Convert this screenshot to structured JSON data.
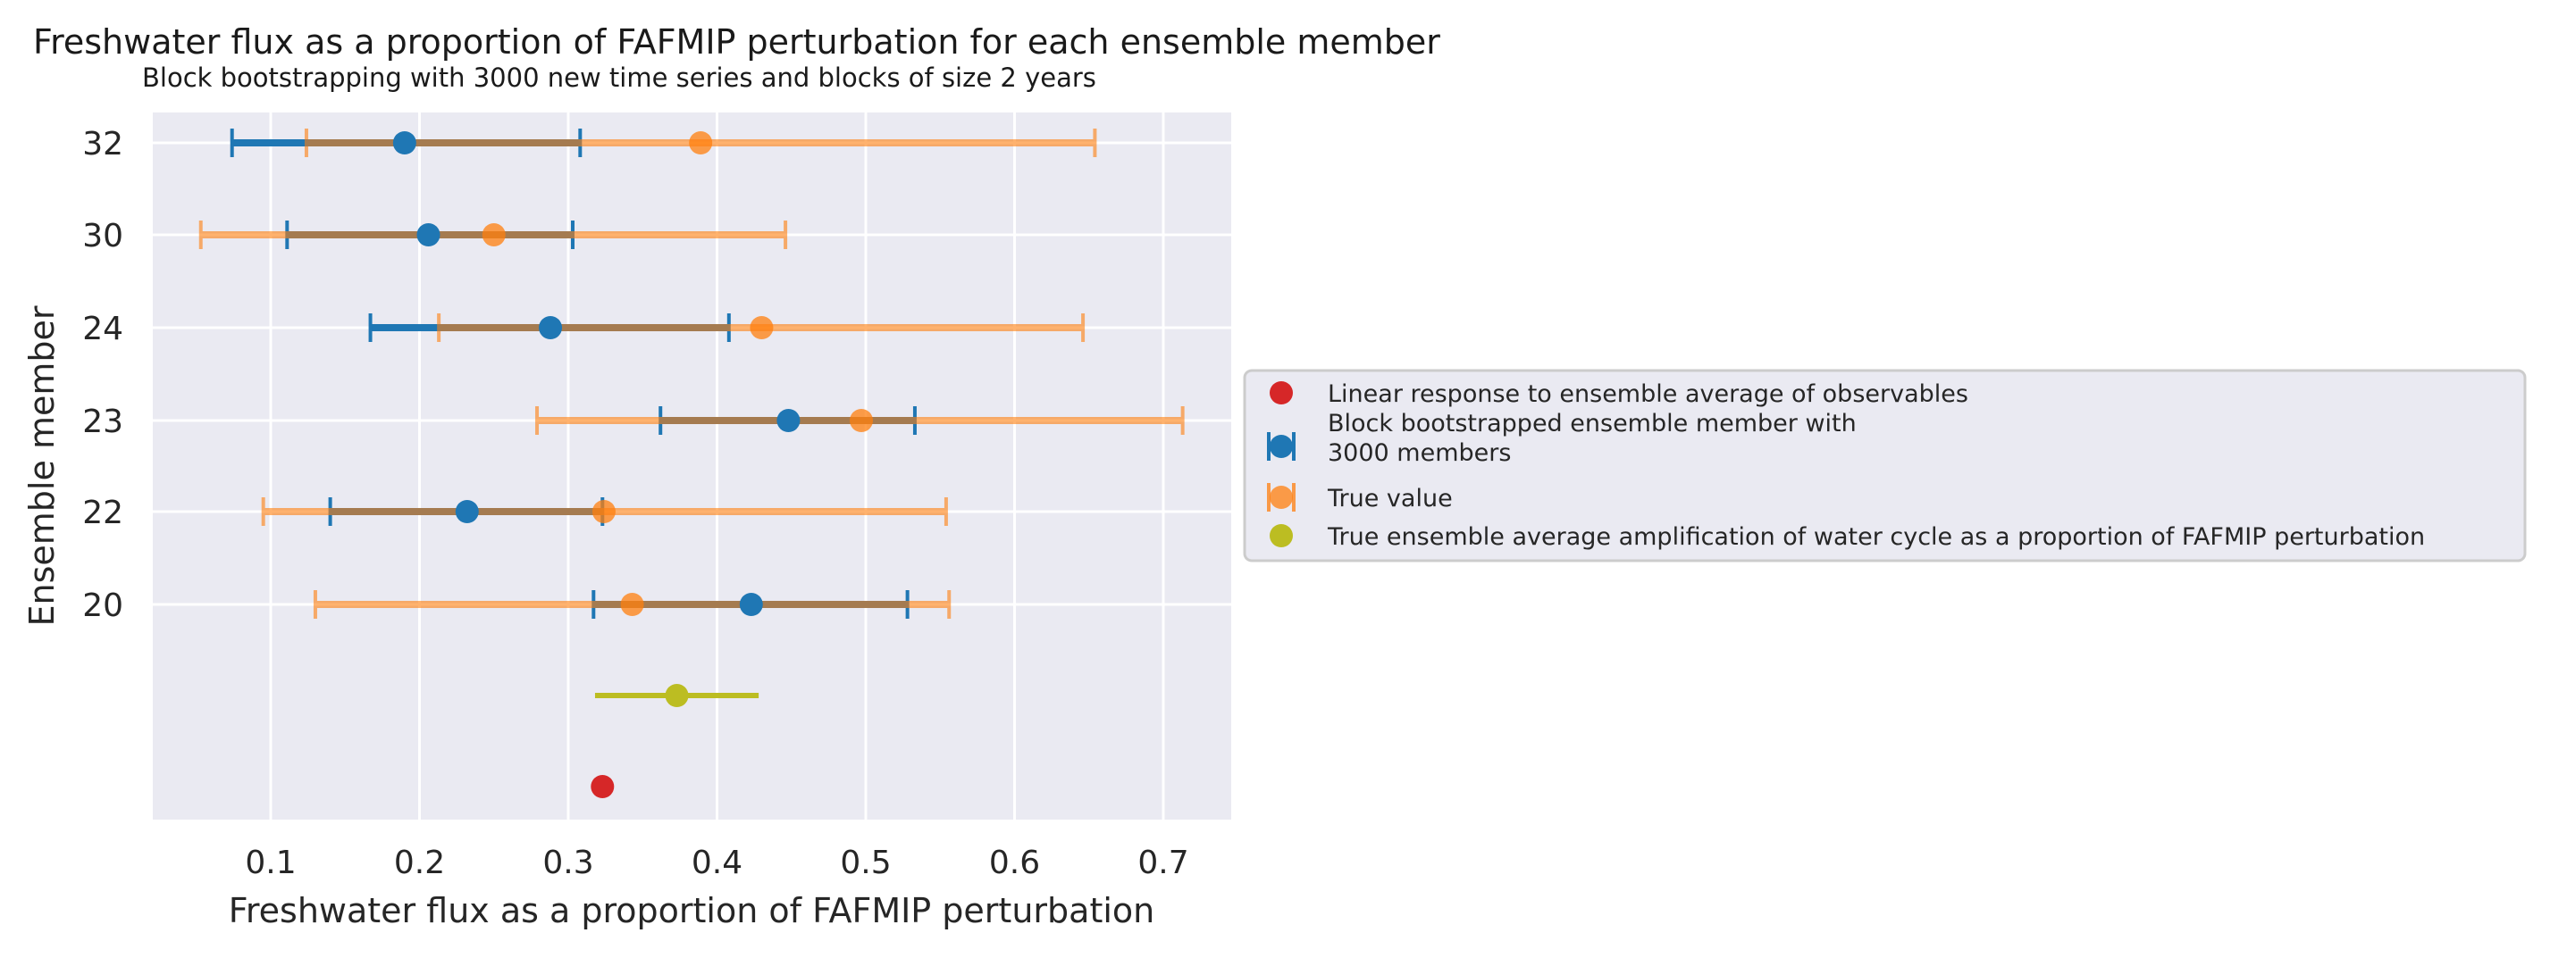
{
  "chart_data": {
    "type": "errorbar",
    "title": "Freshwater flux as a proportion of FAFMIP perturbation for each ensemble member",
    "subtitle": "Block bootstrapping with 3000 new time series and blocks of size 2 years",
    "xlabel": "Freshwater flux as a proportion of FAFMIP perturbation",
    "ylabel": "Ensemble member",
    "xlim": [
      0.02,
      0.75
    ],
    "xticks": [
      0.1,
      0.2,
      0.3,
      0.4,
      0.5,
      0.6,
      0.7
    ],
    "xtick_labels": [
      "0.1",
      "0.2",
      "0.3",
      "0.4",
      "0.5",
      "0.6",
      "0.7"
    ],
    "categories": [
      "32",
      "30",
      "24",
      "23",
      "22",
      "20"
    ],
    "grid": true,
    "legend_position": "right",
    "series": [
      {
        "name": "Linear response to ensemble average of observables",
        "color": "#d62728",
        "marker": "point",
        "points": [
          {
            "x": 0.323
          }
        ]
      },
      {
        "name": "Block bootstrapped ensemble member with\n 3000 members",
        "legend_lines": [
          "Block bootstrapped ensemble member with",
          " 3000 members"
        ],
        "color": "#1f77b4",
        "marker": "errorbar",
        "points": [
          {
            "member": "32",
            "x": 0.19,
            "low": 0.074,
            "high": 0.308
          },
          {
            "member": "30",
            "x": 0.206,
            "low": 0.111,
            "high": 0.303
          },
          {
            "member": "24",
            "x": 0.288,
            "low": 0.167,
            "high": 0.408
          },
          {
            "member": "23",
            "x": 0.448,
            "low": 0.362,
            "high": 0.533
          },
          {
            "member": "22",
            "x": 0.232,
            "low": 0.14,
            "high": 0.323
          },
          {
            "member": "20",
            "x": 0.423,
            "low": 0.317,
            "high": 0.528
          }
        ]
      },
      {
        "name": "True value",
        "color": "#ff7f0e",
        "marker": "errorbar",
        "alpha": 0.6,
        "points": [
          {
            "member": "32",
            "x": 0.389,
            "low": 0.124,
            "high": 0.654
          },
          {
            "member": "30",
            "x": 0.25,
            "low": 0.053,
            "high": 0.446
          },
          {
            "member": "24",
            "x": 0.43,
            "low": 0.213,
            "high": 0.646
          },
          {
            "member": "23",
            "x": 0.497,
            "low": 0.279,
            "high": 0.713
          },
          {
            "member": "22",
            "x": 0.324,
            "low": 0.095,
            "high": 0.554
          },
          {
            "member": "20",
            "x": 0.343,
            "low": 0.13,
            "high": 0.556
          }
        ]
      },
      {
        "name": "True ensemble average amplification of water cycle as a proportion of FAFMIP perturbation",
        "color": "#bcbd22",
        "marker": "errorbar",
        "points": [
          {
            "x": 0.373,
            "low": 0.318,
            "high": 0.428
          }
        ]
      }
    ]
  }
}
